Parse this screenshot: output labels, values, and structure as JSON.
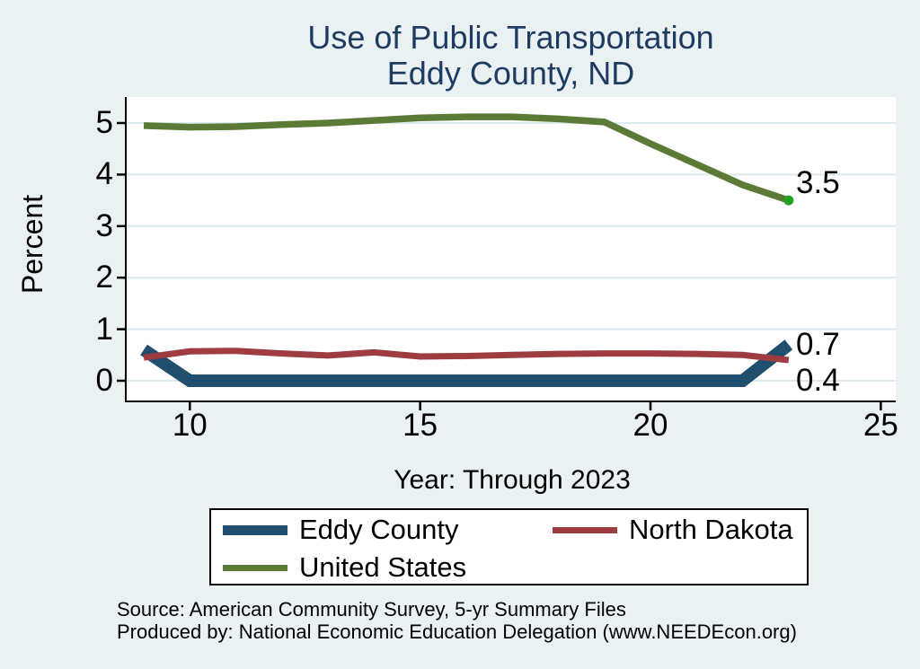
{
  "title": {
    "line1": "Use of Public Transportation",
    "line2": "Eddy County, ND"
  },
  "axes": {
    "y_label": "Percent",
    "x_label": "Year: Through 2023"
  },
  "chart_data": {
    "type": "line",
    "title": "Use of Public Transportation",
    "subtitle": "Eddy County, ND",
    "xlabel": "Year: Through 2023",
    "ylabel": "Percent",
    "x": [
      9,
      10,
      11,
      12,
      13,
      14,
      15,
      16,
      17,
      18,
      19,
      20,
      21,
      22,
      23
    ],
    "series": [
      {
        "name": "Eddy County",
        "color": "#1f4e6e",
        "line_width": 14,
        "values": [
          0.6,
          0,
          0,
          0,
          0,
          0,
          0,
          0,
          0,
          0,
          0,
          0,
          0,
          0,
          0.7
        ]
      },
      {
        "name": "United States",
        "color": "#5b7a35",
        "line_width": 7.5,
        "marker_last": true,
        "marker_color": "#21a121",
        "values": [
          4.95,
          4.92,
          4.93,
          4.97,
          5.0,
          5.05,
          5.1,
          5.12,
          5.12,
          5.08,
          5.02,
          4.6,
          4.2,
          3.8,
          3.5
        ]
      },
      {
        "name": "North Dakota",
        "color": "#9e3c42",
        "line_width": 7,
        "values": [
          0.45,
          0.57,
          0.58,
          0.53,
          0.49,
          0.55,
          0.47,
          0.48,
          0.5,
          0.52,
          0.53,
          0.53,
          0.52,
          0.5,
          0.4
        ]
      }
    ],
    "end_labels": [
      {
        "series": "United States",
        "text": "3.5"
      },
      {
        "series": "Eddy County",
        "text": "0.7"
      },
      {
        "series": "North Dakota",
        "text": "0.4"
      }
    ],
    "x_ticks": [
      10,
      15,
      20,
      25
    ],
    "y_ticks": [
      0,
      1,
      2,
      3,
      4,
      5
    ],
    "xlim": [
      8.6,
      25.3
    ],
    "ylim": [
      -0.4,
      5.5
    ],
    "grid": true,
    "legend_position": "bottom"
  },
  "legend": {
    "entries": [
      {
        "label": "Eddy County",
        "color": "#1f4e6e"
      },
      {
        "label": "North Dakota",
        "color": "#9e3c42"
      },
      {
        "label": "United States",
        "color": "#5b7a35"
      }
    ]
  },
  "notes": {
    "line1": "Source: American Community Survey, 5-yr Summary Files",
    "line2": "Produced by: National Economic Education Delegation (www.NEEDEcon.org)"
  },
  "colors": {
    "background": "#eaf1f3",
    "plot_background": "#ffffff",
    "gridline": "#dce9ed",
    "axis": "#000000",
    "title_text": "#1e3c61",
    "eddy_county": "#1f4e6e",
    "north_dakota": "#9e3c42",
    "united_states": "#5b7a35",
    "marker_dot": "#21a121"
  }
}
